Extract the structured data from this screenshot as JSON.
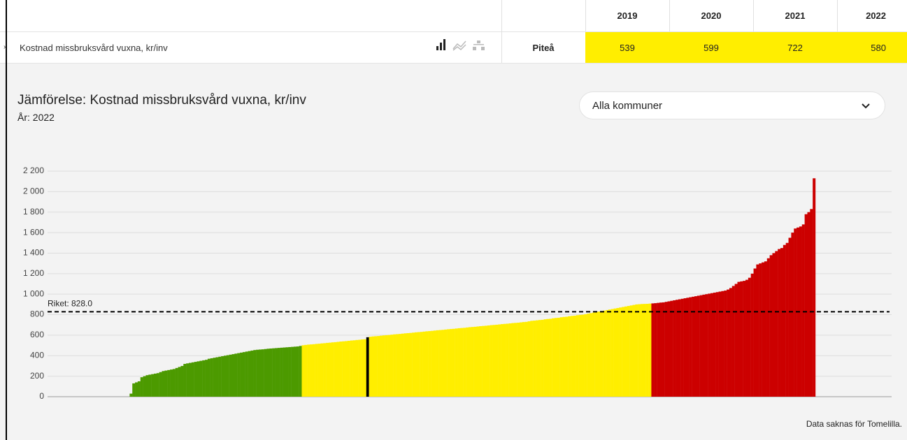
{
  "table": {
    "columns": [
      "2019",
      "2020",
      "2021",
      "2022"
    ],
    "rows": [
      {
        "label": "Kostnad missbruksvård vuxna, kr/inv",
        "municipality": "Piteå",
        "values": [
          539,
          599,
          722,
          580
        ]
      }
    ]
  },
  "filter": {
    "selected": "Alla kommuner"
  },
  "chart_data": {
    "type": "bar",
    "title": "Jämförelse: Kostnad missbruksvård vuxna, kr/inv",
    "subtitle": "År: 2022",
    "note": "Data saknas för Tomelilla.",
    "ylim": [
      0,
      2200
    ],
    "yticks": [
      0,
      200,
      400,
      600,
      800,
      {
        "value": 1000,
        "label": "1 000"
      },
      {
        "value": 1200,
        "label": "1 200"
      },
      {
        "value": 1400,
        "label": "1 400"
      },
      {
        "value": 1600,
        "label": "1 600"
      },
      {
        "value": 1800,
        "label": "1 800"
      },
      {
        "value": 2000,
        "label": "2 000"
      },
      {
        "value": 2200,
        "label": "2 200"
      }
    ],
    "grid": true,
    "reference_line": {
      "value": 828,
      "label": "Riket: 828.0"
    },
    "series": [
      {
        "color": "#4c9a00",
        "values": [
          0,
          0,
          0,
          0,
          0,
          0,
          0,
          0,
          0,
          0,
          0,
          0,
          0,
          0,
          0,
          0,
          0,
          0,
          0,
          0,
          0,
          0,
          0,
          0,
          0,
          0,
          0,
          0,
          0,
          0,
          30,
          130,
          140,
          150,
          190,
          200,
          210,
          215,
          220,
          225,
          230,
          240,
          250,
          255,
          260,
          265,
          270,
          280,
          290,
          300,
          320,
          325,
          330,
          335,
          340,
          345,
          350,
          355,
          360,
          370,
          375,
          380,
          385,
          390,
          395,
          400,
          405,
          410,
          415,
          420,
          425,
          430,
          435,
          440,
          445,
          450,
          455,
          458,
          460,
          462,
          465,
          468,
          470,
          472,
          474,
          476,
          478,
          480,
          482,
          484,
          486,
          488,
          490,
          495
        ]
      },
      {
        "color": "#ffee00",
        "values": [
          502,
          505,
          508,
          510,
          512,
          515,
          517,
          520,
          522,
          525,
          527,
          530,
          532,
          535,
          538,
          540,
          542,
          545,
          548,
          550,
          553,
          555,
          558,
          560
        ]
      },
      {
        "color": "#000000",
        "values": [
          580
        ]
      },
      {
        "color": "#ffee00",
        "values": [
          585,
          588,
          590,
          592,
          595,
          598,
          600,
          602,
          605,
          608,
          610,
          612,
          615,
          618,
          620,
          622,
          625,
          628,
          630,
          632,
          635,
          638,
          640,
          642,
          645,
          648,
          650,
          652,
          655,
          658,
          660,
          662,
          665,
          668,
          670,
          672,
          675,
          678,
          680,
          682,
          685,
          688,
          690,
          692,
          695,
          698,
          700,
          702,
          705,
          708,
          710,
          712,
          715,
          718,
          720,
          722,
          725,
          728,
          730,
          735,
          740,
          742,
          745,
          748,
          750,
          755,
          758,
          760,
          765,
          768,
          770,
          775,
          778,
          780,
          785,
          788,
          790,
          795,
          798,
          800,
          805,
          810,
          815,
          820,
          825,
          830,
          835,
          840,
          845,
          850,
          855,
          860,
          865,
          870,
          875,
          880,
          885,
          890,
          895,
          900,
          902,
          904,
          905,
          906,
          908
        ]
      },
      {
        "color": "#cc0000",
        "values": [
          910,
          912,
          915,
          918,
          920,
          925,
          930,
          935,
          940,
          945,
          950,
          955,
          960,
          965,
          970,
          975,
          980,
          985,
          990,
          995,
          1000,
          1005,
          1010,
          1015,
          1020,
          1025,
          1030,
          1035,
          1045,
          1060,
          1080,
          1100,
          1120,
          1125,
          1130,
          1140,
          1160,
          1200,
          1250,
          1290,
          1300,
          1310,
          1320,
          1350,
          1380,
          1400,
          1420,
          1440,
          1450,
          1480,
          1500,
          1550,
          1600,
          1640,
          1650,
          1660,
          1680,
          1780,
          1800,
          1830,
          2130
        ]
      }
    ]
  }
}
